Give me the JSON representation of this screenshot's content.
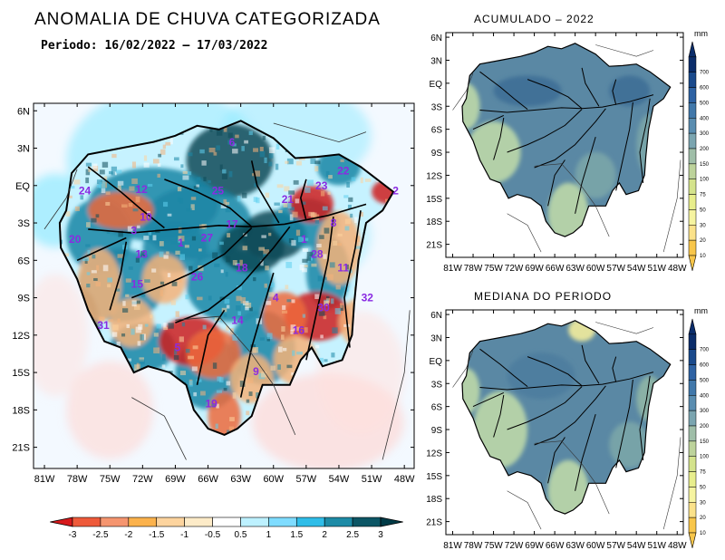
{
  "main_title": "ANOMALIA DE CHUVA CATEGORIZADA",
  "period_label": "Periodo: 16/02/2022 – 17/03/2022",
  "panel_top_title": "ACUMULADO – 2022",
  "panel_bottom_title": "MEDIANA DO PERIODO",
  "main_lat_ticks": [
    "6N",
    "3N",
    "EQ",
    "3S",
    "6S",
    "9S",
    "12S",
    "15S",
    "18S",
    "21S"
  ],
  "main_lon_ticks": [
    "81W",
    "78W",
    "75W",
    "72W",
    "69W",
    "66W",
    "63W",
    "60W",
    "57W",
    "54W",
    "51W",
    "48W"
  ],
  "small_lat_ticks": [
    "6N",
    "3N",
    "EQ",
    "3S",
    "6S",
    "9S",
    "12S",
    "15S",
    "18S",
    "21S"
  ],
  "small_lon_ticks": [
    "81W",
    "78W",
    "75W",
    "72W",
    "69W",
    "66W",
    "63W",
    "60W",
    "57W",
    "54W",
    "51W",
    "48W"
  ],
  "basin_numbers": [
    {
      "n": "6",
      "lon": -63.8,
      "lat": 3.2
    },
    {
      "n": "22",
      "lon": -53.6,
      "lat": 0.9
    },
    {
      "n": "23",
      "lon": -55.6,
      "lat": -0.3
    },
    {
      "n": "24",
      "lon": -77.3,
      "lat": -0.7
    },
    {
      "n": "12",
      "lon": -72.1,
      "lat": -0.6
    },
    {
      "n": "25",
      "lon": -65.1,
      "lat": -0.7
    },
    {
      "n": "21",
      "lon": -58.7,
      "lat": -1.4
    },
    {
      "n": "2",
      "lon": -48.8,
      "lat": -0.7
    },
    {
      "n": "10",
      "lon": -71.7,
      "lat": -2.8
    },
    {
      "n": "3",
      "lon": -72.8,
      "lat": -3.9
    },
    {
      "n": "8",
      "lon": -54.5,
      "lat": -3.3
    },
    {
      "n": "17",
      "lon": -63.8,
      "lat": -3.4
    },
    {
      "n": "20",
      "lon": -78.2,
      "lat": -4.6
    },
    {
      "n": "1",
      "lon": -68.5,
      "lat": -4.9
    },
    {
      "n": "27",
      "lon": -66.1,
      "lat": -4.5
    },
    {
      "n": "1",
      "lon": -57.2,
      "lat": -4.6
    },
    {
      "n": "13",
      "lon": -72.1,
      "lat": -5.8
    },
    {
      "n": "28",
      "lon": -56.0,
      "lat": -5.8
    },
    {
      "n": "11",
      "lon": -53.6,
      "lat": -6.9
    },
    {
      "n": "18",
      "lon": -62.9,
      "lat": -6.9
    },
    {
      "n": "26",
      "lon": -67.0,
      "lat": -7.6
    },
    {
      "n": "15",
      "lon": -72.5,
      "lat": -8.2
    },
    {
      "n": "4",
      "lon": -59.8,
      "lat": -9.3
    },
    {
      "n": "32",
      "lon": -51.4,
      "lat": -9.3
    },
    {
      "n": "30",
      "lon": -55.4,
      "lat": -10.1
    },
    {
      "n": "31",
      "lon": -75.6,
      "lat": -11.5
    },
    {
      "n": "14",
      "lon": -63.3,
      "lat": -11.1
    },
    {
      "n": "16",
      "lon": -57.7,
      "lat": -11.9
    },
    {
      "n": "5",
      "lon": -68.8,
      "lat": -13.3
    },
    {
      "n": "9",
      "lon": -61.6,
      "lat": -15.2
    },
    {
      "n": "19",
      "lon": -65.7,
      "lat": -17.8
    }
  ],
  "anomaly_colorbar": {
    "labels": [
      "-3",
      "-2.5",
      "-2",
      "-1.5",
      "-1",
      "-0.5",
      "0.5",
      "1",
      "1.5",
      "2",
      "2.5",
      "3"
    ],
    "colors": [
      "#d7191c",
      "#ee5a3a",
      "#f5956f",
      "#fbb24c",
      "#fdd49e",
      "#fdebc8",
      "#ffffff",
      "#bdf1ff",
      "#7fdcff",
      "#2fbde8",
      "#1d8ba6",
      "#0c5665",
      "#003a46"
    ]
  },
  "precip_colorbar": {
    "unit": "mm",
    "labels": [
      "700",
      "600",
      "500",
      "400",
      "300",
      "200",
      "150",
      "100",
      "75",
      "50",
      "30",
      "20",
      "10"
    ],
    "colors": [
      "#0b2d6b",
      "#1a4a8c",
      "#2e62a3",
      "#4178aa",
      "#5a8db0",
      "#7ba5b0",
      "#9fbea8",
      "#bdd39b",
      "#d4e38c",
      "#e8ee8c",
      "#f6f4a0",
      "#fbe28a",
      "#f8c64a"
    ]
  },
  "colors": {
    "land_base": "#f3f9ff",
    "ocean": "#ffffff",
    "wet_strong": "#0c4a58",
    "wet": "#1b86a6",
    "wet_light": "#5fd0ee",
    "dry_strong": "#cf1c1c",
    "dry": "#ee6b3d",
    "dry_light": "#f6b37a",
    "precip_main": "#5a88a4",
    "precip_light": "#bcd8a8",
    "precip_dry": "#f2ec9c"
  }
}
